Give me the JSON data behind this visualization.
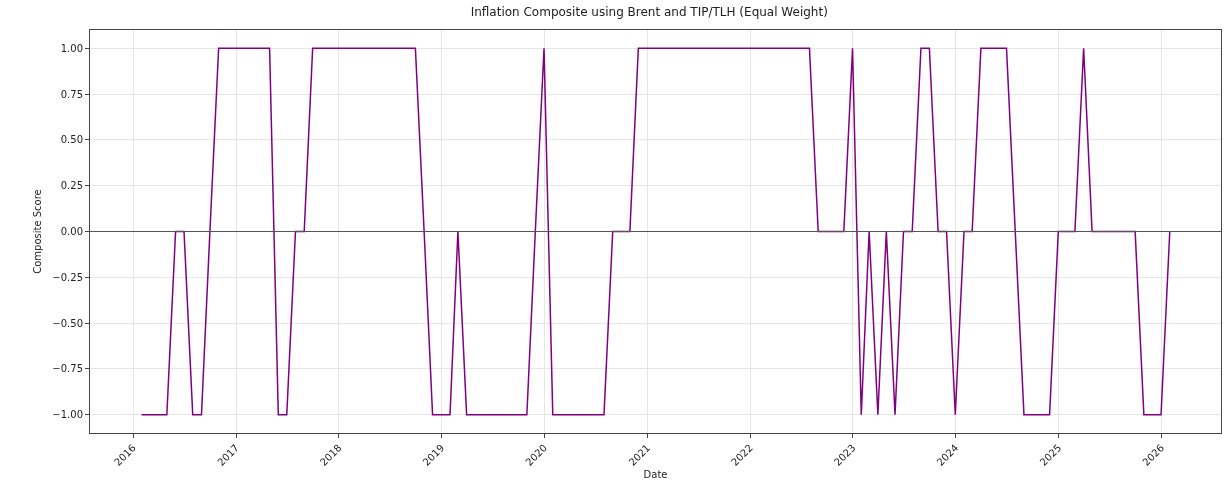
{
  "chart_data": {
    "type": "line",
    "title": "Inflation Composite using Brent and TIP/TLH (Equal Weight)",
    "xlabel": "Date",
    "ylabel": "Composite Score",
    "x": [
      "2016-01-31",
      "2016-02-29",
      "2016-03-31",
      "2016-04-30",
      "2016-05-31",
      "2016-06-30",
      "2016-07-31",
      "2016-08-31",
      "2016-09-30",
      "2016-10-31",
      "2016-11-30",
      "2016-12-31",
      "2017-01-31",
      "2017-02-28",
      "2017-03-31",
      "2017-04-30",
      "2017-05-31",
      "2017-06-30",
      "2017-07-31",
      "2017-08-31",
      "2017-09-30",
      "2017-10-31",
      "2017-11-30",
      "2017-12-31",
      "2018-01-31",
      "2018-02-28",
      "2018-03-31",
      "2018-04-30",
      "2018-05-31",
      "2018-06-30",
      "2018-07-31",
      "2018-08-31",
      "2018-09-30",
      "2018-10-31",
      "2018-11-30",
      "2018-12-31",
      "2019-01-31",
      "2019-02-28",
      "2019-03-31",
      "2019-04-30",
      "2019-05-31",
      "2019-06-30",
      "2019-07-31",
      "2019-08-31",
      "2019-09-30",
      "2019-10-31",
      "2019-11-30",
      "2019-12-31",
      "2020-01-31",
      "2020-02-29",
      "2020-03-31",
      "2020-04-30",
      "2020-05-31",
      "2020-06-30",
      "2020-07-31",
      "2020-08-31",
      "2020-09-30",
      "2020-10-31",
      "2020-11-30",
      "2020-12-31",
      "2021-01-31",
      "2021-02-28",
      "2021-03-31",
      "2021-04-30",
      "2021-05-31",
      "2021-06-30",
      "2021-07-31",
      "2021-08-31",
      "2021-09-30",
      "2021-10-31",
      "2021-11-30",
      "2021-12-31",
      "2022-01-31",
      "2022-02-28",
      "2022-03-31",
      "2022-04-30",
      "2022-05-31",
      "2022-06-30",
      "2022-07-31",
      "2022-08-31",
      "2022-09-30",
      "2022-10-31",
      "2022-11-30",
      "2022-12-31",
      "2023-01-31",
      "2023-02-28",
      "2023-03-31",
      "2023-04-30",
      "2023-05-31",
      "2023-06-30",
      "2023-07-31",
      "2023-08-31",
      "2023-09-30",
      "2023-10-31",
      "2023-11-30",
      "2023-12-31",
      "2024-01-31",
      "2024-02-29",
      "2024-03-31",
      "2024-04-30",
      "2024-05-31",
      "2024-06-30",
      "2024-07-31",
      "2024-08-31",
      "2024-09-30",
      "2024-10-31",
      "2024-11-30",
      "2024-12-31",
      "2025-01-31",
      "2025-02-28",
      "2025-03-31",
      "2025-04-30",
      "2025-05-31",
      "2025-06-30",
      "2025-07-31",
      "2025-08-31",
      "2025-09-30",
      "2025-10-31",
      "2025-11-30",
      "2025-12-31",
      "2026-01-31"
    ],
    "series": [
      {
        "color": "#800080",
        "values": [
          -1,
          -1,
          -1,
          -1,
          0,
          0,
          -1,
          -1,
          0,
          1,
          1,
          1,
          1,
          1,
          1,
          1,
          -1,
          -1,
          0,
          0,
          1,
          1,
          1,
          1,
          1,
          1,
          1,
          1,
          1,
          1,
          1,
          1,
          1,
          0,
          -1,
          -1,
          -1,
          0,
          -1,
          -1,
          -1,
          -1,
          -1,
          -1,
          -1,
          -1,
          0,
          1,
          -1,
          -1,
          -1,
          -1,
          -1,
          -1,
          -1,
          0,
          0,
          0,
          1,
          1,
          1,
          1,
          1,
          1,
          1,
          1,
          1,
          1,
          1,
          1,
          1,
          1,
          1,
          1,
          1,
          1,
          1,
          1,
          1,
          0,
          0,
          0,
          0,
          1,
          -1,
          0,
          -1,
          0,
          -1,
          0,
          0,
          1,
          1,
          0,
          0,
          -1,
          0,
          0,
          1,
          1,
          1,
          1,
          0,
          -1,
          -1,
          -1,
          -1,
          0,
          0,
          0,
          1,
          0,
          0,
          0,
          0,
          0,
          0,
          -1,
          -1,
          -1,
          0
        ]
      }
    ],
    "xlim": [
      "2015-08-01",
      "2026-08-01"
    ],
    "xticks": [
      {
        "value": "2016-01-01",
        "label": "2016"
      },
      {
        "value": "2017-01-01",
        "label": "2017"
      },
      {
        "value": "2018-01-01",
        "label": "2018"
      },
      {
        "value": "2019-01-01",
        "label": "2019"
      },
      {
        "value": "2020-01-01",
        "label": "2020"
      },
      {
        "value": "2021-01-01",
        "label": "2021"
      },
      {
        "value": "2022-01-01",
        "label": "2022"
      },
      {
        "value": "2023-01-01",
        "label": "2023"
      },
      {
        "value": "2024-01-01",
        "label": "2024"
      },
      {
        "value": "2025-01-01",
        "label": "2025"
      },
      {
        "value": "2026-01-01",
        "label": "2026"
      }
    ],
    "ylim": [
      -1.1,
      1.1
    ],
    "yticks": [
      {
        "value": -1,
        "label": "−1.00"
      },
      {
        "value": -0.75,
        "label": "−0.75"
      },
      {
        "value": -0.5,
        "label": "−0.50"
      },
      {
        "value": -0.25,
        "label": "−0.25"
      },
      {
        "value": 0,
        "label": "0.00"
      },
      {
        "value": 0.25,
        "label": "0.25"
      },
      {
        "value": 0.5,
        "label": "0.50"
      },
      {
        "value": 0.75,
        "label": "0.75"
      },
      {
        "value": 1,
        "label": "1.00"
      }
    ],
    "ref_lines": [
      {
        "axis": "y",
        "value": 0,
        "color": "#555555"
      }
    ],
    "grid": true,
    "marker": "none",
    "line_style": "solid"
  }
}
